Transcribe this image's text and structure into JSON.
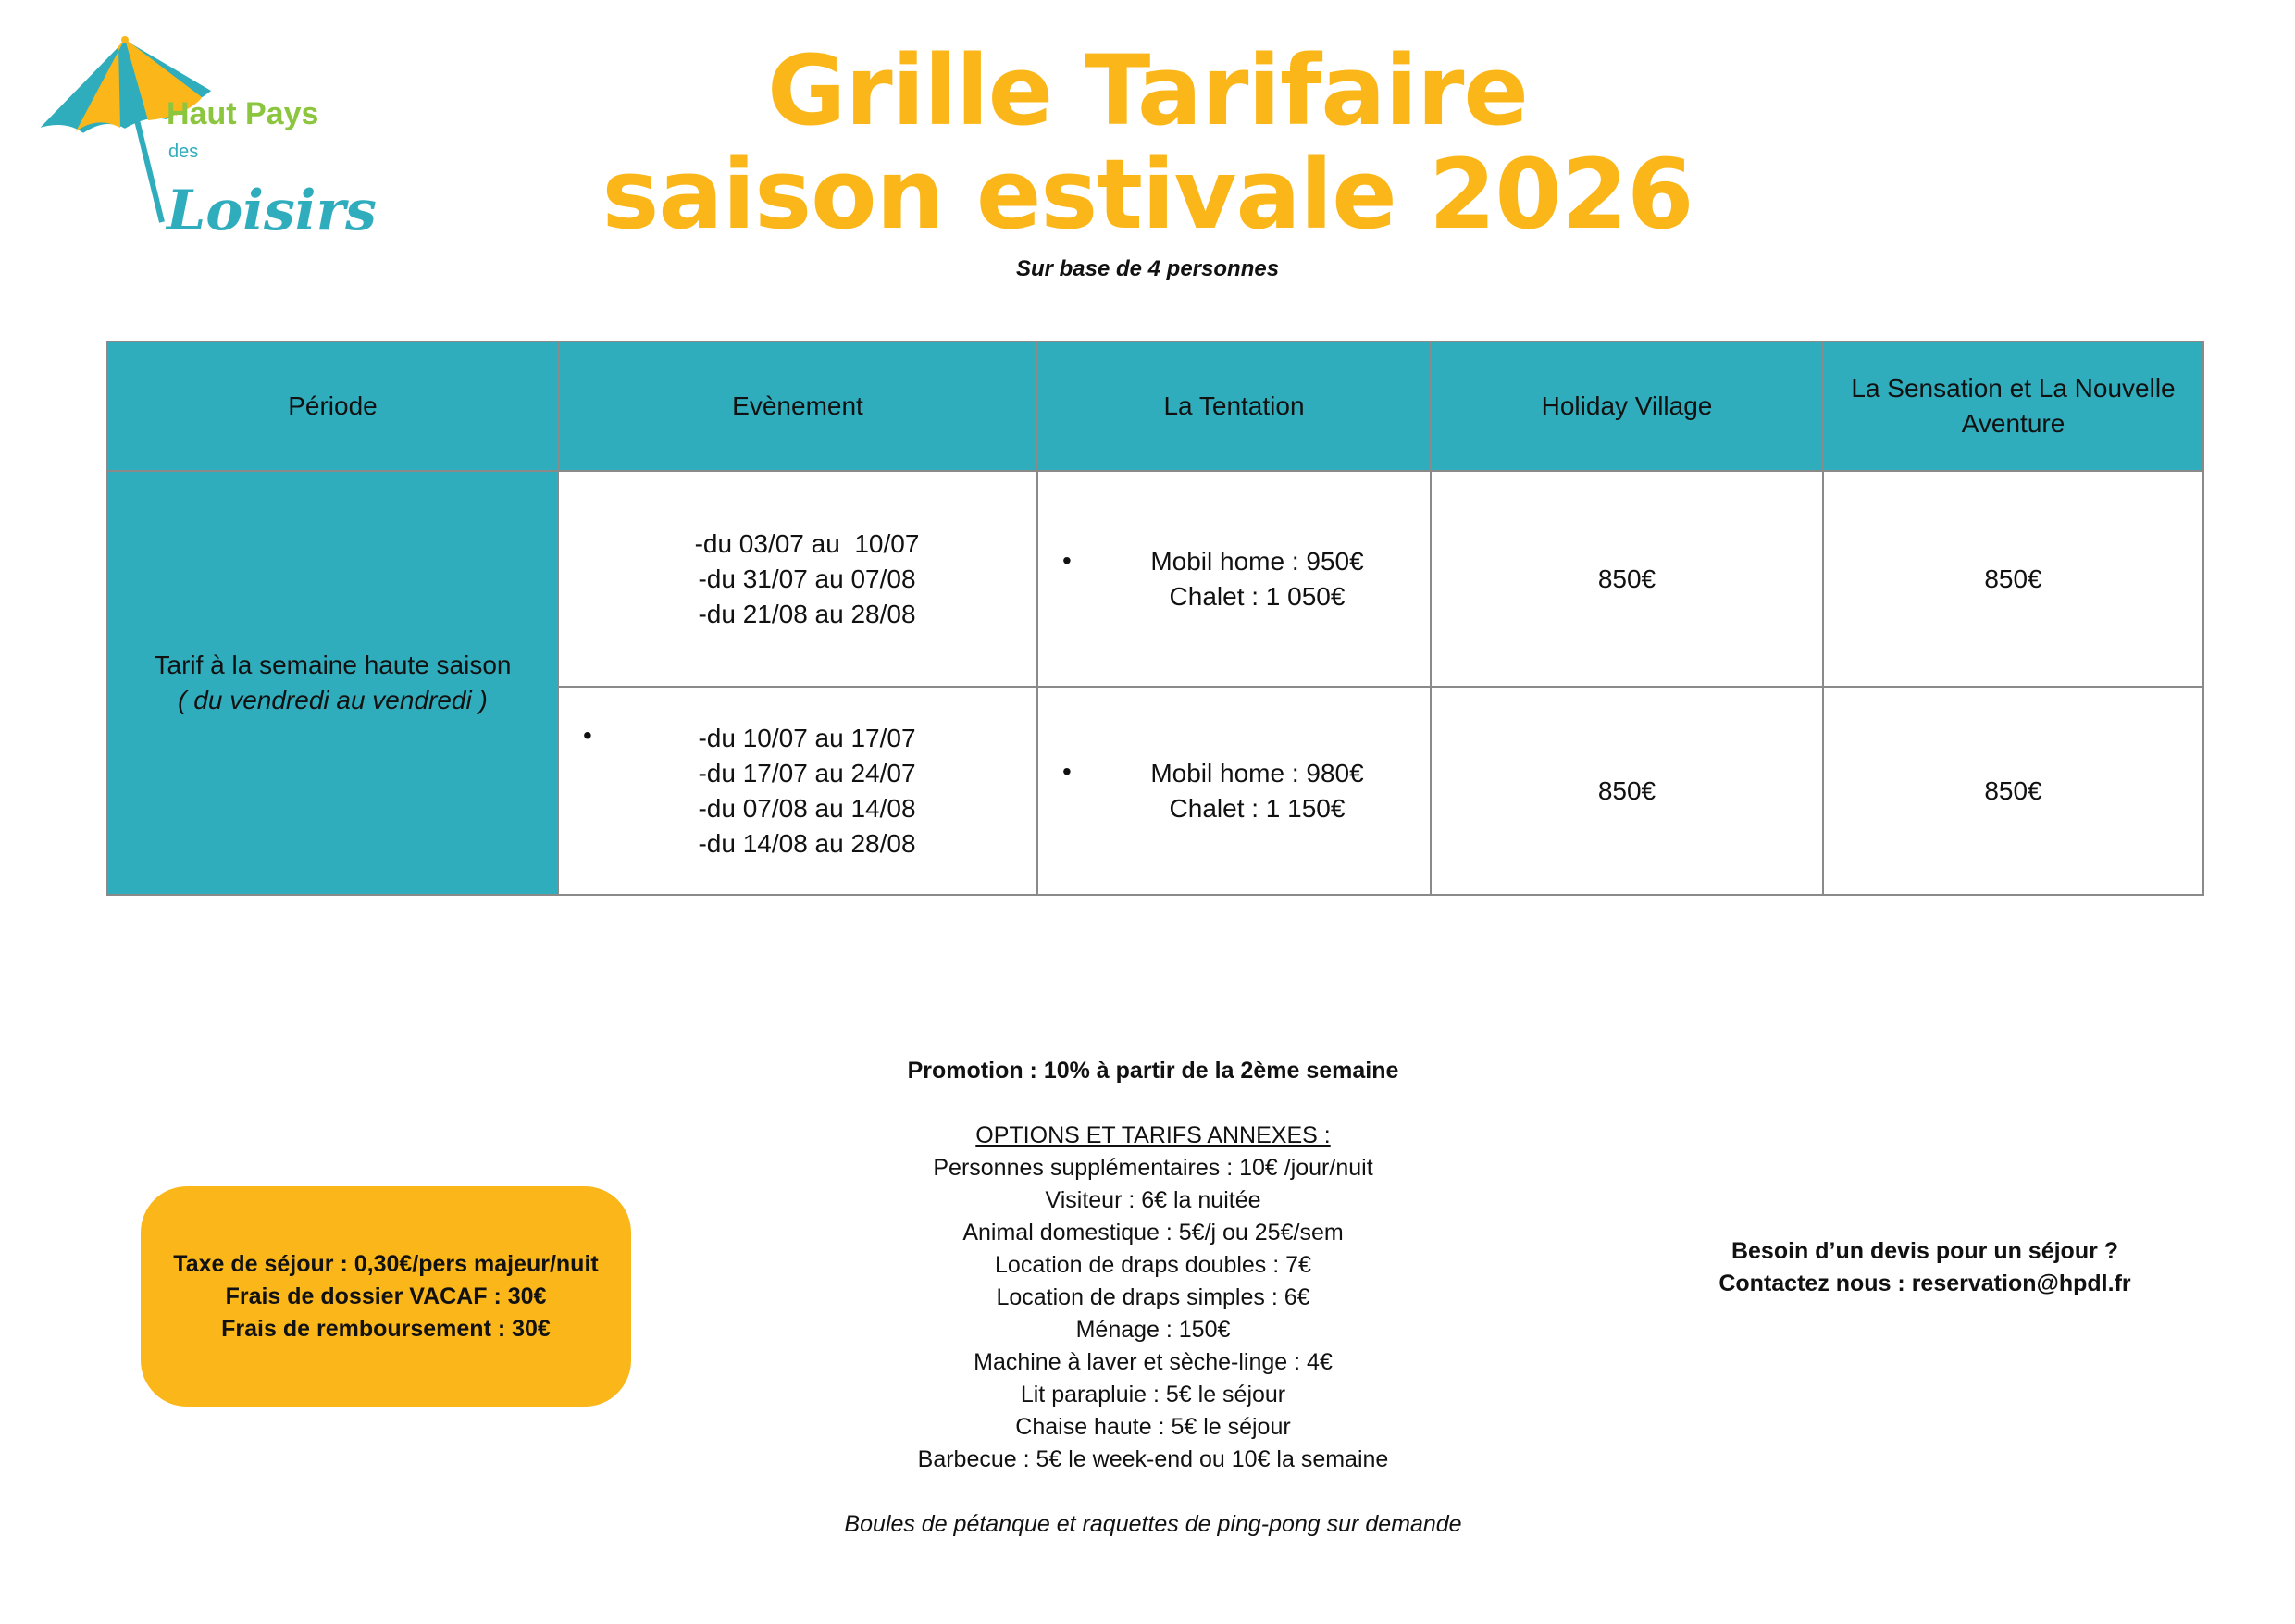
{
  "logo": {
    "line1": "Haut Pays",
    "line2": "des",
    "line3": "Loisirs",
    "colors": {
      "teal": "#2fadbd",
      "yellow": "#fbb71a",
      "green": "#8cc63f"
    }
  },
  "header": {
    "title_line1": "Grille Tarifaire",
    "title_line2": "saison estivale 2026",
    "subtitle": "Sur base de 4 personnes"
  },
  "colors": {
    "accent_yellow": "#fbb71a",
    "table_header": "#2fadbd"
  },
  "table": {
    "headers": [
      "Période",
      "Evènement",
      "La Tentation",
      "Holiday Village",
      "La Sensation et La Nouvelle Aventure"
    ],
    "period": {
      "line1": "Tarif à la semaine haute saison",
      "line2": "( du vendredi au vendredi )"
    },
    "rows": [
      {
        "events": [
          "-du 03/07 au  10/07",
          "-du 31/07 au 07/08",
          "-du 21/08 au 28/08"
        ],
        "tentation": [
          "Mobil home : 950€",
          "Chalet : 1 050€"
        ],
        "holiday_village": "850€",
        "sensation": "850€"
      },
      {
        "events": [
          "-du 10/07 au 17/07",
          "-du 17/07 au 24/07",
          "-du 07/08 au 14/08",
          "-du 14/08 au 28/08"
        ],
        "tentation": [
          "Mobil home : 980€",
          "Chalet : 1 150€"
        ],
        "holiday_village": "850€",
        "sensation": "850€"
      }
    ],
    "bullet": "•"
  },
  "fees_box": [
    "Taxe de séjour : 0,30€/pers majeur/nuit",
    "Frais de dossier VACAF : 30€",
    "Frais de remboursement : 30€"
  ],
  "options": {
    "promotion": "Promotion : 10% à partir de la 2ème semaine",
    "title": "OPTIONS ET TARIFS ANNEXES :",
    "items": [
      "Personnes supplémentaires : 10€ /jour/nuit",
      "Visiteur : 6€ la nuitée",
      "Animal domestique : 5€/j ou 25€/sem",
      "Location de draps doubles : 7€",
      "Location de draps simples : 6€",
      "Ménage : 150€",
      "Machine à laver et sèche-linge : 4€",
      "Lit parapluie : 5€ le séjour",
      "Chaise haute : 5€ le séjour",
      "Barbecue : 5€ le week-end ou 10€ la semaine"
    ],
    "note": "Boules de pétanque et raquettes de ping-pong sur demande"
  },
  "contact": {
    "line1": "Besoin d’un devis pour un séjour ?",
    "line2": "Contactez nous : reservation@hpdl.fr"
  }
}
